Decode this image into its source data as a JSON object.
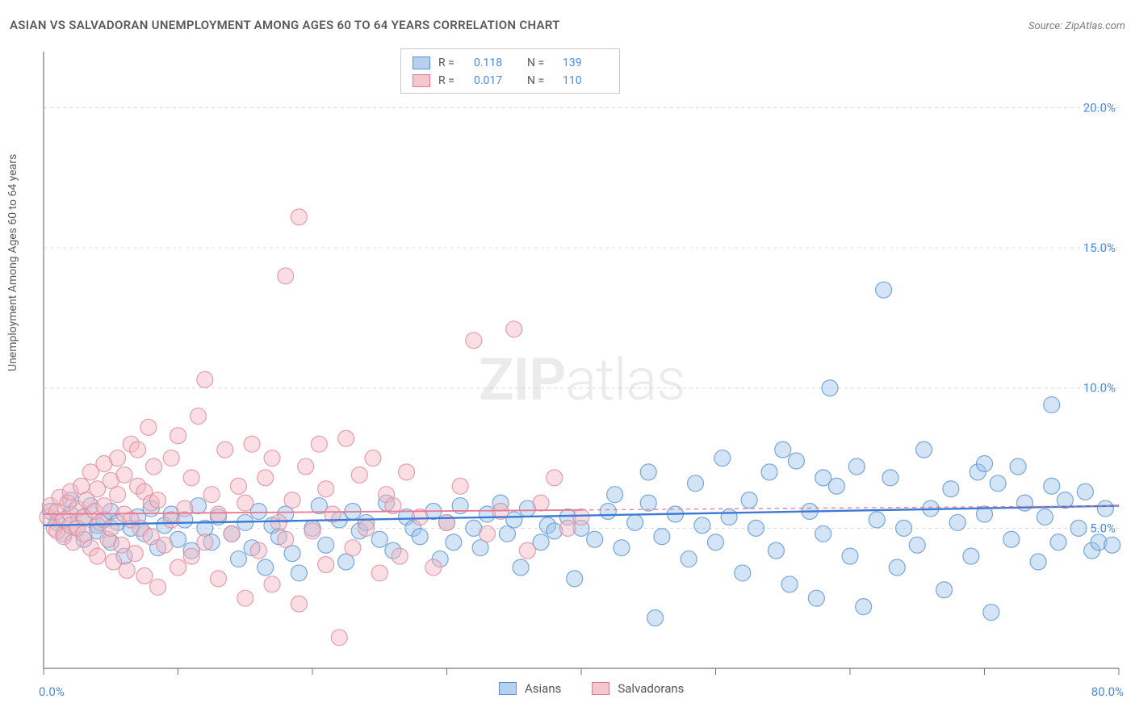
{
  "title": "ASIAN VS SALVADORAN UNEMPLOYMENT AMONG AGES 60 TO 64 YEARS CORRELATION CHART",
  "source": "Source: ZipAtlas.com",
  "y_axis_label": "Unemployment Among Ages 60 to 64 years",
  "watermark_bold": "ZIP",
  "watermark_light": "atlas",
  "chart": {
    "type": "scatter",
    "xlim": [
      0,
      80
    ],
    "ylim": [
      0,
      22
    ],
    "x_ticks": [
      0,
      10,
      20,
      30,
      40,
      50,
      60,
      70,
      80
    ],
    "x_tick_labels": {
      "0": "0.0%",
      "80": "80.0%"
    },
    "y_ticks": [
      5,
      10,
      15,
      20
    ],
    "y_tick_labels": {
      "5": "5.0%",
      "10": "10.0%",
      "15": "15.0%",
      "20": "20.0%"
    },
    "grid_color": "#d9d9d9",
    "background_color": "#ffffff",
    "axis_color": "#777777",
    "marker_radius": 10,
    "marker_opacity": 0.45,
    "series": [
      {
        "name": "Asians",
        "fill": "#9cc3ec",
        "stroke": "#5b93d1",
        "R": "0.118",
        "N": "139",
        "trend": {
          "y0": 5.1,
          "y1": 5.8,
          "color": "#3a7bd5",
          "width": 2.4,
          "dash": null
        },
        "points": [
          [
            0.5,
            5.6
          ],
          [
            1,
            5.2
          ],
          [
            1.5,
            4.8
          ],
          [
            2,
            5.5
          ],
          [
            2,
            6.0
          ],
          [
            2.5,
            5.0
          ],
          [
            3,
            5.4
          ],
          [
            3,
            4.6
          ],
          [
            3.5,
            5.8
          ],
          [
            4,
            5.1
          ],
          [
            4,
            4.9
          ],
          [
            4.5,
            5.3
          ],
          [
            5,
            5.6
          ],
          [
            5,
            4.5
          ],
          [
            5.5,
            5.2
          ],
          [
            6,
            4.0
          ],
          [
            6.5,
            5.0
          ],
          [
            7,
            5.4
          ],
          [
            7.5,
            4.8
          ],
          [
            8,
            5.7
          ],
          [
            8.5,
            4.3
          ],
          [
            9,
            5.1
          ],
          [
            9.5,
            5.5
          ],
          [
            10,
            4.6
          ],
          [
            10.5,
            5.3
          ],
          [
            11,
            4.2
          ],
          [
            11.5,
            5.8
          ],
          [
            12,
            5.0
          ],
          [
            12.5,
            4.5
          ],
          [
            13,
            5.4
          ],
          [
            14,
            4.8
          ],
          [
            14.5,
            3.9
          ],
          [
            15,
            5.2
          ],
          [
            15.5,
            4.3
          ],
          [
            16,
            5.6
          ],
          [
            16.5,
            3.6
          ],
          [
            17,
            5.1
          ],
          [
            17.5,
            4.7
          ],
          [
            18,
            5.5
          ],
          [
            18.5,
            4.1
          ],
          [
            19,
            3.4
          ],
          [
            20,
            5.0
          ],
          [
            20.5,
            5.8
          ],
          [
            21,
            4.4
          ],
          [
            22,
            5.3
          ],
          [
            22.5,
            3.8
          ],
          [
            23,
            5.6
          ],
          [
            23.5,
            4.9
          ],
          [
            24,
            5.2
          ],
          [
            25,
            4.6
          ],
          [
            25.5,
            5.9
          ],
          [
            26,
            4.2
          ],
          [
            27,
            5.4
          ],
          [
            27.5,
            5.0
          ],
          [
            28,
            4.7
          ],
          [
            29,
            5.6
          ],
          [
            29.5,
            3.9
          ],
          [
            30,
            5.2
          ],
          [
            30.5,
            4.5
          ],
          [
            31,
            5.8
          ],
          [
            32,
            5.0
          ],
          [
            32.5,
            4.3
          ],
          [
            33,
            5.5
          ],
          [
            34,
            5.9
          ],
          [
            34.5,
            4.8
          ],
          [
            35,
            5.3
          ],
          [
            35.5,
            3.6
          ],
          [
            36,
            5.7
          ],
          [
            37,
            4.5
          ],
          [
            37.5,
            5.1
          ],
          [
            38,
            4.9
          ],
          [
            39,
            5.4
          ],
          [
            39.5,
            3.2
          ],
          [
            40,
            5.0
          ],
          [
            41,
            4.6
          ],
          [
            42,
            5.6
          ],
          [
            42.5,
            6.2
          ],
          [
            43,
            4.3
          ],
          [
            44,
            5.2
          ],
          [
            45,
            5.9
          ],
          [
            45.5,
            1.8
          ],
          [
            46,
            4.7
          ],
          [
            47,
            5.5
          ],
          [
            48,
            3.9
          ],
          [
            48.5,
            6.6
          ],
          [
            49,
            5.1
          ],
          [
            50,
            4.5
          ],
          [
            50.5,
            7.5
          ],
          [
            51,
            5.4
          ],
          [
            52,
            3.4
          ],
          [
            52.5,
            6.0
          ],
          [
            53,
            5.0
          ],
          [
            54,
            7.0
          ],
          [
            54.5,
            4.2
          ],
          [
            55,
            7.8
          ],
          [
            55.5,
            3.0
          ],
          [
            56,
            7.4
          ],
          [
            57,
            5.6
          ],
          [
            57.5,
            2.5
          ],
          [
            58,
            4.8
          ],
          [
            58.5,
            10.0
          ],
          [
            59,
            6.5
          ],
          [
            60,
            4.0
          ],
          [
            60.5,
            7.2
          ],
          [
            61,
            2.2
          ],
          [
            62,
            5.3
          ],
          [
            62.5,
            13.5
          ],
          [
            63,
            6.8
          ],
          [
            63.5,
            3.6
          ],
          [
            64,
            5.0
          ],
          [
            65,
            4.4
          ],
          [
            65.5,
            7.8
          ],
          [
            66,
            5.7
          ],
          [
            67,
            2.8
          ],
          [
            67.5,
            6.4
          ],
          [
            68,
            5.2
          ],
          [
            69,
            4.0
          ],
          [
            69.5,
            7.0
          ],
          [
            70,
            5.5
          ],
          [
            70.5,
            2.0
          ],
          [
            71,
            6.6
          ],
          [
            72,
            4.6
          ],
          [
            72.5,
            7.2
          ],
          [
            73,
            5.9
          ],
          [
            74,
            3.8
          ],
          [
            74.5,
            5.4
          ],
          [
            75,
            9.4
          ],
          [
            75.5,
            4.5
          ],
          [
            76,
            6.0
          ],
          [
            77,
            5.0
          ],
          [
            77.5,
            6.3
          ],
          [
            78,
            4.2
          ],
          [
            78.5,
            4.5
          ],
          [
            79,
            5.7
          ],
          [
            79.5,
            4.4
          ],
          [
            75,
            6.5
          ],
          [
            70,
            7.3
          ],
          [
            58,
            6.8
          ],
          [
            45,
            7.0
          ]
        ]
      },
      {
        "name": "Salvadorans",
        "fill": "#f5b5c2",
        "stroke": "#e08a9c",
        "R": "0.017",
        "N": "110",
        "trend": {
          "y0": 5.5,
          "y1": 5.8,
          "color": "#e97a94",
          "width": 1.8,
          "dash": "5 5",
          "solid_until": 40
        },
        "points": [
          [
            0.3,
            5.4
          ],
          [
            0.5,
            5.8
          ],
          [
            0.8,
            5.0
          ],
          [
            1,
            5.6
          ],
          [
            1,
            4.9
          ],
          [
            1.2,
            6.1
          ],
          [
            1.5,
            5.3
          ],
          [
            1.5,
            4.7
          ],
          [
            1.8,
            5.9
          ],
          [
            2,
            5.1
          ],
          [
            2,
            6.3
          ],
          [
            2.2,
            4.5
          ],
          [
            2.5,
            5.7
          ],
          [
            2.5,
            5.0
          ],
          [
            2.8,
            6.5
          ],
          [
            3,
            4.8
          ],
          [
            3,
            5.4
          ],
          [
            3.2,
            6.0
          ],
          [
            3.5,
            7.0
          ],
          [
            3.5,
            4.3
          ],
          [
            3.8,
            5.6
          ],
          [
            4,
            6.4
          ],
          [
            4,
            4.0
          ],
          [
            4.2,
            5.2
          ],
          [
            4.5,
            7.3
          ],
          [
            4.5,
            5.8
          ],
          [
            4.8,
            4.6
          ],
          [
            5,
            6.7
          ],
          [
            5,
            5.0
          ],
          [
            5.2,
            3.8
          ],
          [
            5.5,
            6.2
          ],
          [
            5.5,
            7.5
          ],
          [
            5.8,
            4.4
          ],
          [
            6,
            5.5
          ],
          [
            6,
            6.9
          ],
          [
            6.2,
            3.5
          ],
          [
            6.5,
            8.0
          ],
          [
            6.5,
            5.3
          ],
          [
            6.8,
            4.1
          ],
          [
            7,
            6.5
          ],
          [
            7,
            7.8
          ],
          [
            7.2,
            5.0
          ],
          [
            7.5,
            3.3
          ],
          [
            7.5,
            6.3
          ],
          [
            7.8,
            8.6
          ],
          [
            8,
            4.7
          ],
          [
            8,
            5.9
          ],
          [
            8.2,
            7.2
          ],
          [
            8.5,
            2.9
          ],
          [
            8.5,
            6.0
          ],
          [
            9,
            4.4
          ],
          [
            9.5,
            7.5
          ],
          [
            9.5,
            5.3
          ],
          [
            10,
            3.6
          ],
          [
            10,
            8.3
          ],
          [
            10.5,
            5.7
          ],
          [
            11,
            4.0
          ],
          [
            11,
            6.8
          ],
          [
            11.5,
            9.0
          ],
          [
            12,
            4.5
          ],
          [
            12,
            10.3
          ],
          [
            12.5,
            6.2
          ],
          [
            13,
            3.2
          ],
          [
            13,
            5.5
          ],
          [
            13.5,
            7.8
          ],
          [
            14,
            4.8
          ],
          [
            14.5,
            6.5
          ],
          [
            15,
            2.5
          ],
          [
            15,
            5.9
          ],
          [
            15.5,
            8.0
          ],
          [
            16,
            4.2
          ],
          [
            16.5,
            6.8
          ],
          [
            17,
            3.0
          ],
          [
            17,
            7.5
          ],
          [
            17.5,
            5.2
          ],
          [
            18,
            4.6
          ],
          [
            18,
            14.0
          ],
          [
            18.5,
            6.0
          ],
          [
            19,
            2.3
          ],
          [
            19,
            16.1
          ],
          [
            19.5,
            7.2
          ],
          [
            20,
            4.9
          ],
          [
            20.5,
            8.0
          ],
          [
            21,
            3.7
          ],
          [
            21,
            6.4
          ],
          [
            21.5,
            5.5
          ],
          [
            22,
            1.1
          ],
          [
            22.5,
            8.2
          ],
          [
            23,
            4.3
          ],
          [
            23.5,
            6.9
          ],
          [
            24,
            5.0
          ],
          [
            24.5,
            7.5
          ],
          [
            25,
            3.4
          ],
          [
            25.5,
            6.2
          ],
          [
            26,
            5.8
          ],
          [
            26.5,
            4.0
          ],
          [
            27,
            7.0
          ],
          [
            28,
            5.4
          ],
          [
            29,
            3.6
          ],
          [
            30,
            5.2
          ],
          [
            31,
            6.5
          ],
          [
            32,
            11.7
          ],
          [
            33,
            4.8
          ],
          [
            34,
            5.6
          ],
          [
            35,
            12.1
          ],
          [
            36,
            4.2
          ],
          [
            37,
            5.9
          ],
          [
            38,
            6.8
          ],
          [
            39,
            5.0
          ],
          [
            40,
            5.4
          ]
        ]
      }
    ]
  },
  "legend_top": {
    "rows": [
      {
        "swatch": "blue",
        "r_lbl": "R =",
        "r_val": "0.118",
        "n_lbl": "N =",
        "n_val": "139"
      },
      {
        "swatch": "pink",
        "r_lbl": "R =",
        "r_val": "0.017",
        "n_lbl": "N =",
        "n_val": "110"
      }
    ]
  },
  "legend_bottom": {
    "items": [
      {
        "swatch": "blue",
        "label": "Asians"
      },
      {
        "swatch": "pink",
        "label": "Salvadorans"
      }
    ]
  }
}
